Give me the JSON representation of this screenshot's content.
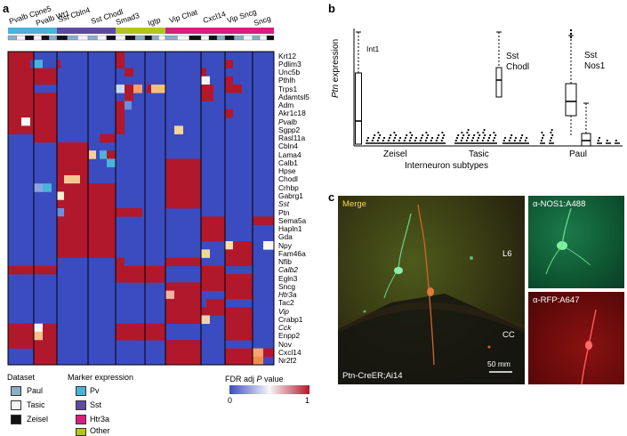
{
  "panels": {
    "a": "a",
    "b": "b",
    "c": "c"
  },
  "heatmap": {
    "column_groups": [
      "Pvalb Cpne5",
      "Pvalb Wt1",
      "Sst Cbln4",
      "Sst Chodl",
      "Smad3",
      "Igtp",
      "Vip Chat",
      "Cxcl14",
      "Vip Sncg",
      "Sncg"
    ],
    "genes": [
      {
        "label": "Krt12",
        "italic": false
      },
      {
        "label": "Pdlim3",
        "italic": false
      },
      {
        "label": "Unc5b",
        "italic": false
      },
      {
        "label": "Pthlh",
        "italic": false
      },
      {
        "label": "Trps1",
        "italic": false
      },
      {
        "label": "Adamtsl5",
        "italic": false
      },
      {
        "label": "Adm",
        "italic": false
      },
      {
        "label": "Akr1c18",
        "italic": false
      },
      {
        "label": "Pvalb",
        "italic": true
      },
      {
        "label": "Sgpp2",
        "italic": false
      },
      {
        "label": "Rasl11a",
        "italic": false
      },
      {
        "label": "Cbln4",
        "italic": false
      },
      {
        "label": "Lama4",
        "italic": false
      },
      {
        "label": "Calb1",
        "italic": false
      },
      {
        "label": "Hpse",
        "italic": false
      },
      {
        "label": "Chodl",
        "italic": false
      },
      {
        "label": "Crhbp",
        "italic": false
      },
      {
        "label": "Gabrg1",
        "italic": false
      },
      {
        "label": "Sst",
        "italic": true
      },
      {
        "label": "Ptn",
        "italic": false
      },
      {
        "label": "Sema5a",
        "italic": false
      },
      {
        "label": "Hapln1",
        "italic": false
      },
      {
        "label": "Gda",
        "italic": false
      },
      {
        "label": "Npy",
        "italic": false
      },
      {
        "label": "Fam46a",
        "italic": false
      },
      {
        "label": "Nfib",
        "italic": false
      },
      {
        "label": "Calb2",
        "italic": true
      },
      {
        "label": "Egln3",
        "italic": false
      },
      {
        "label": "Sncg",
        "italic": false
      },
      {
        "label": "Htr3a",
        "italic": true
      },
      {
        "label": "Tac2",
        "italic": false
      },
      {
        "label": "Vip",
        "italic": true
      },
      {
        "label": "Crabp1",
        "italic": false
      },
      {
        "label": "Cck",
        "italic": true
      },
      {
        "label": "Enpp2",
        "italic": false
      },
      {
        "label": "Nov",
        "italic": false
      },
      {
        "label": "Cxcl14",
        "italic": false
      },
      {
        "label": "Nr2f2",
        "italic": false
      }
    ],
    "colors": {
      "high": "#b2182b",
      "mid": "#f7f7f7",
      "low": "#3b4cc0",
      "pv": "#4ab3d9",
      "sst": "#5d4aa3",
      "htr3a": "#d81f7e",
      "other": "#b4c41c",
      "paul": "#8aaec4",
      "tasic": "#f4f4f4",
      "zeisel": "#111111"
    }
  },
  "legend": {
    "dataset_title": "Dataset",
    "datasets": [
      "Paul",
      "Tasic",
      "Zeisel"
    ],
    "marker_title": "Marker expression",
    "markers": [
      "Pv",
      "Sst",
      "Htr3a",
      "Other"
    ],
    "colorbar_title_prefix": "FDR adj ",
    "colorbar_title_italic": "P",
    "colorbar_title_suffix": " value",
    "colorbar_min": "0",
    "colorbar_max": "1"
  },
  "boxplot": {
    "ylabel_italic": "Ptn",
    "ylabel_rest": " expression",
    "xlabel": "Interneuron subtypes",
    "groups": [
      "Zeisel",
      "Tasic",
      "Paul"
    ],
    "annotations": [
      {
        "text": "Int1",
        "group": "Zeisel"
      },
      {
        "text": "Sst",
        "group": "Tasic"
      },
      {
        "text": "Chodl",
        "group": "Tasic"
      },
      {
        "text": "Sst",
        "group": "Paul"
      },
      {
        "text": "Nos1",
        "group": "Paul"
      }
    ]
  },
  "micrographs": {
    "merge_label": "Merge",
    "l6_label": "L6",
    "cc_label": "CC",
    "scale_label": "50 mm",
    "genotype_label": "Ptn-CreER;Ai14",
    "nos1_label": "α-NOS1:A488",
    "rfp_label": "α-RFP:A647"
  }
}
